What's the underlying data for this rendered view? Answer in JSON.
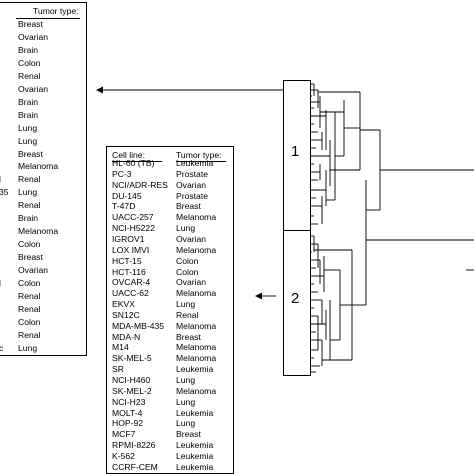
{
  "left_table": {
    "tumor_type_header": "Tumor type:",
    "cell_line_clips": [
      "l",
      "35",
      "l",
      "c"
    ],
    "tumor_types": [
      "Breast",
      "Ovarian",
      "Brain",
      "Colon",
      "Renal",
      "Ovarian",
      "Brain",
      "Brain",
      "Lung",
      "Lung",
      "Breast",
      "Melanoma",
      "Renal",
      "Lung",
      "Renal",
      "Brain",
      "Melanoma",
      "Colon",
      "Breast",
      "Ovarian",
      "Colon",
      "Renal",
      "Renal",
      "Colon",
      "Renal",
      "Lung"
    ]
  },
  "right_table": {
    "cell_line_header": "Cell line:",
    "tumor_type_header": "Tumor type:",
    "rows": [
      {
        "cell": "HL-60 (TB)",
        "tumor": "Leukemia"
      },
      {
        "cell": "PC-3",
        "tumor": "Prostate"
      },
      {
        "cell": "NCI/ADR-RES",
        "tumor": "Ovarian"
      },
      {
        "cell": "DU-145",
        "tumor": "Prostate"
      },
      {
        "cell": "T-47D",
        "tumor": "Breast"
      },
      {
        "cell": "UACC-257",
        "tumor": "Melanoma"
      },
      {
        "cell": "NCI-H5222",
        "tumor": "Lung"
      },
      {
        "cell": "IGROV1",
        "tumor": "Ovarian"
      },
      {
        "cell": "LOX IMVI",
        "tumor": "Melanoma"
      },
      {
        "cell": "HCT-15",
        "tumor": "Colon"
      },
      {
        "cell": "HCT-116",
        "tumor": "Colon"
      },
      {
        "cell": "OVCAR-4",
        "tumor": "Ovarian"
      },
      {
        "cell": "UACC-62",
        "tumor": "Melanoma"
      },
      {
        "cell": "EKVX",
        "tumor": "Lung"
      },
      {
        "cell": "SN12C",
        "tumor": "Renal"
      },
      {
        "cell": "MDA-MB-435",
        "tumor": "Melanoma"
      },
      {
        "cell": "MDA-N",
        "tumor": "Breast"
      },
      {
        "cell": "M14",
        "tumor": "Melanoma"
      },
      {
        "cell": "SK-MEL-5",
        "tumor": "Melanoma"
      },
      {
        "cell": "SR",
        "tumor": "Leukemia"
      },
      {
        "cell": "NCI-H460",
        "tumor": "Lung"
      },
      {
        "cell": "SK-MEL-2",
        "tumor": "Melanoma"
      },
      {
        "cell": "NCI-H23",
        "tumor": "Lung"
      },
      {
        "cell": "MOLT-4",
        "tumor": "Leukemia"
      },
      {
        "cell": "HOP-92",
        "tumor": "Lung"
      },
      {
        "cell": "MCF7",
        "tumor": "Breast"
      },
      {
        "cell": "RPMI-8226",
        "tumor": "Leukemia"
      },
      {
        "cell": "K-562",
        "tumor": "Leukemia"
      },
      {
        "cell": "CCRF-CEM",
        "tumor": "Leukemia"
      }
    ]
  },
  "clusters": {
    "label_1": "1",
    "label_2": "2"
  }
}
